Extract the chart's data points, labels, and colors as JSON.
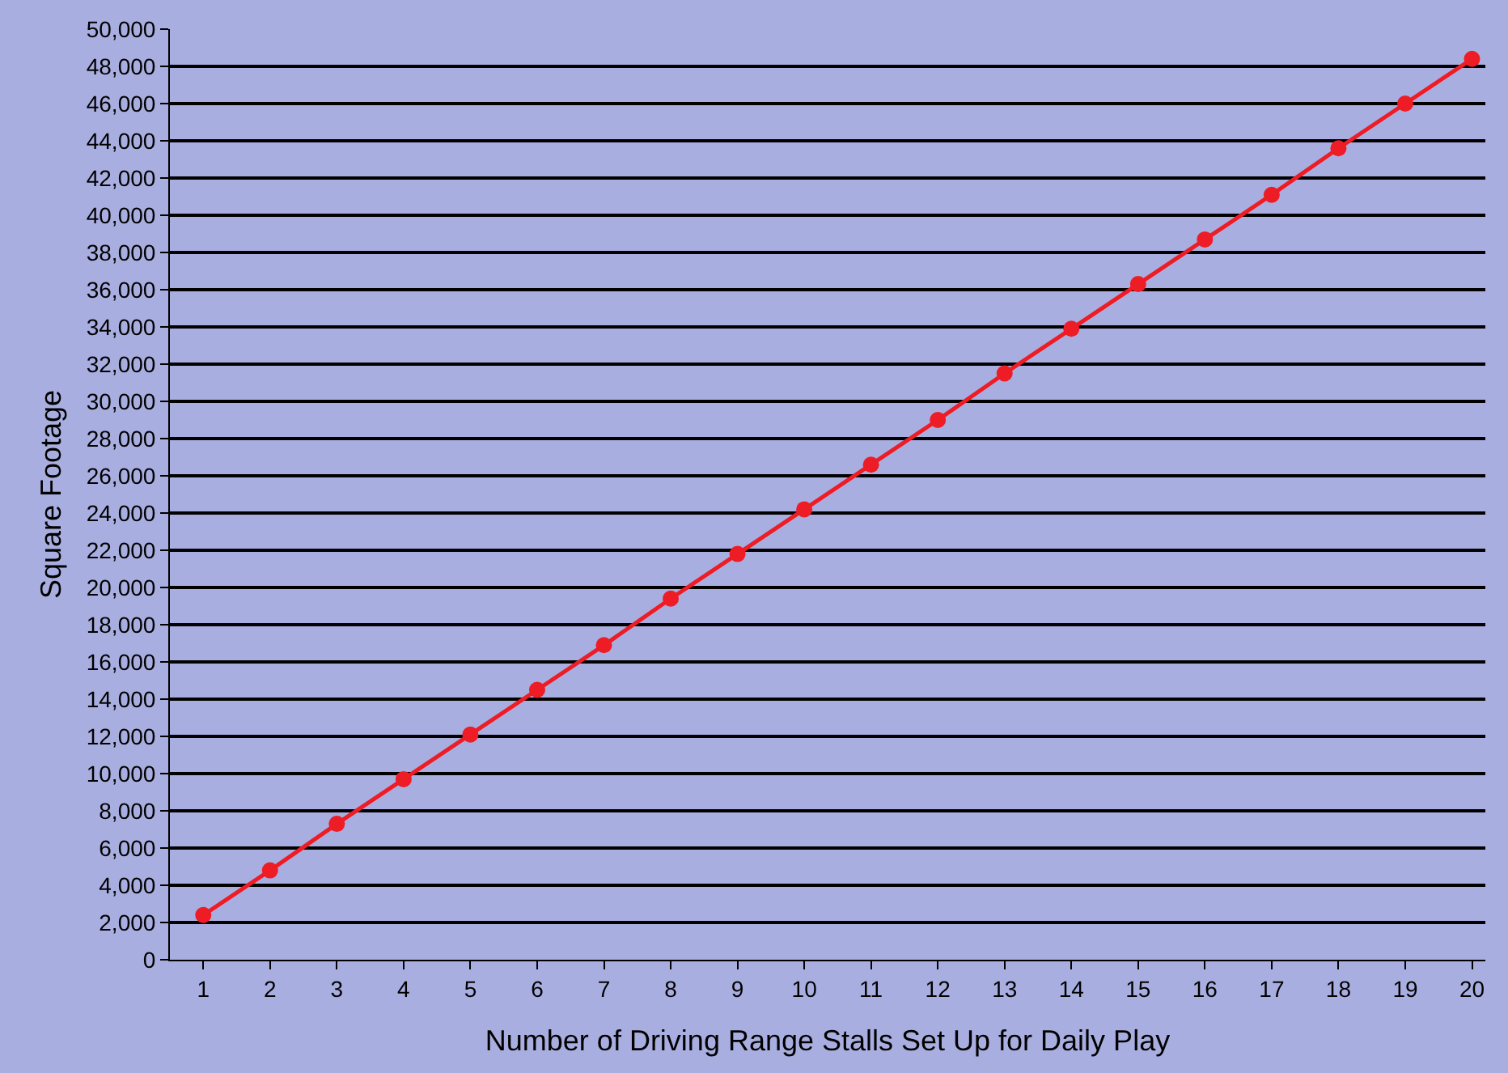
{
  "chart_data": {
    "type": "line",
    "xlabel": "Number of Driving Range Stalls Set Up for Daily Play",
    "ylabel": "Square Footage",
    "x": [
      1,
      2,
      3,
      4,
      5,
      6,
      7,
      8,
      9,
      10,
      11,
      12,
      13,
      14,
      15,
      16,
      17,
      18,
      19,
      20
    ],
    "series": [
      {
        "color": "#ee1c24",
        "values": [
          2400,
          4800,
          7300,
          9700,
          12100,
          14500,
          16900,
          19400,
          21800,
          24200,
          26600,
          29000,
          31500,
          33900,
          36300,
          38700,
          41100,
          43600,
          46000,
          48400
        ]
      }
    ],
    "xlim": [
      0.5,
      20.2
    ],
    "xticks": [
      1,
      2,
      3,
      4,
      5,
      6,
      7,
      8,
      9,
      10,
      11,
      12,
      13,
      14,
      15,
      16,
      17,
      18,
      19,
      20
    ],
    "ylim": [
      0,
      50000
    ],
    "yticks": [
      0,
      {
        "value": 2000,
        "label": "2,000"
      },
      {
        "value": 4000,
        "label": "4,000"
      },
      {
        "value": 6000,
        "label": "6,000"
      },
      {
        "value": 8000,
        "label": "8,000"
      },
      {
        "value": 10000,
        "label": "10,000"
      },
      {
        "value": 12000,
        "label": "12,000"
      },
      {
        "value": 14000,
        "label": "14,000"
      },
      {
        "value": 16000,
        "label": "16,000"
      },
      {
        "value": 18000,
        "label": "18,000"
      },
      {
        "value": 20000,
        "label": "20,000"
      },
      {
        "value": 22000,
        "label": "22,000"
      },
      {
        "value": 24000,
        "label": "24,000"
      },
      {
        "value": 26000,
        "label": "26,000"
      },
      {
        "value": 28000,
        "label": "28,000"
      },
      {
        "value": 30000,
        "label": "30,000"
      },
      {
        "value": 32000,
        "label": "32,000"
      },
      {
        "value": 34000,
        "label": "34,000"
      },
      {
        "value": 36000,
        "label": "36,000"
      },
      {
        "value": 38000,
        "label": "38,000"
      },
      {
        "value": 40000,
        "label": "40,000"
      },
      {
        "value": 42000,
        "label": "42,000"
      },
      {
        "value": 44000,
        "label": "44,000"
      },
      {
        "value": 46000,
        "label": "46,000"
      },
      {
        "value": 48000,
        "label": "48,000"
      },
      {
        "value": 50000,
        "label": "50,000"
      }
    ],
    "grid": "y",
    "marker": "circle",
    "line_style": "solid",
    "legend": false
  }
}
